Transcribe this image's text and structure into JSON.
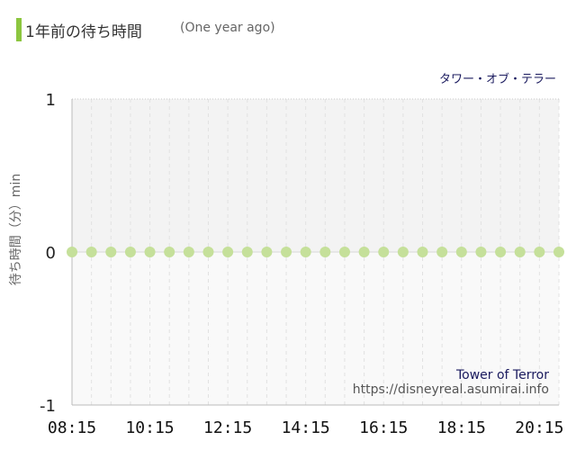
{
  "header": {
    "title": "1年前の待ち時間",
    "subtitle": "(One year ago)"
  },
  "colors": {
    "accent": "#8cc63f",
    "point": "#c5e09a",
    "plot_top": "#f3f3f3",
    "plot_bottom": "#f9f9f9"
  },
  "chart_data": {
    "type": "scatter",
    "attraction_jp": "タワー・オブ・テラー",
    "attraction_en": "Tower of Terror",
    "site": "https://disneyreal.asumirai.info",
    "ylabel": "待ち時間（分）min",
    "ylim": [
      -1,
      1
    ],
    "yticks": [
      "1",
      "0",
      "-1"
    ],
    "xticks": [
      "08:15",
      "10:15",
      "12:15",
      "14:15",
      "16:15",
      "18:15",
      "20:15"
    ],
    "grid": true,
    "series": [
      {
        "x": [
          "08:15",
          "08:45",
          "09:15",
          "09:45",
          "10:15",
          "10:45",
          "11:15",
          "11:45",
          "12:15",
          "12:45",
          "13:15",
          "13:45",
          "14:15",
          "14:45",
          "15:15",
          "15:45",
          "16:15",
          "16:45",
          "17:15",
          "17:45",
          "18:15",
          "18:45",
          "19:15",
          "19:45",
          "20:15",
          "20:45"
        ],
        "values": [
          0,
          0,
          0,
          0,
          0,
          0,
          0,
          0,
          0,
          0,
          0,
          0,
          0,
          0,
          0,
          0,
          0,
          0,
          0,
          0,
          0,
          0,
          0,
          0,
          0,
          0
        ]
      }
    ]
  }
}
